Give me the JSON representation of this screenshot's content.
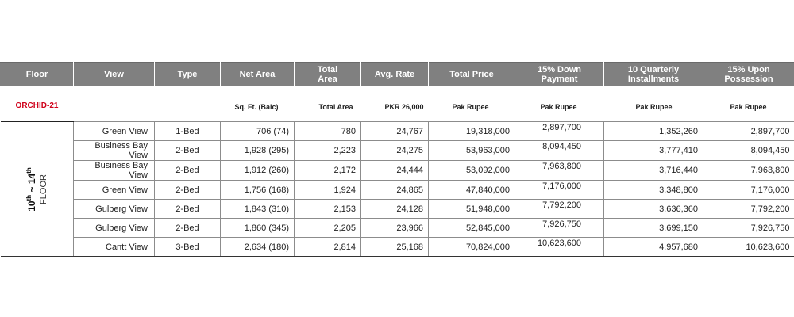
{
  "headers": {
    "floor": "Floor",
    "view": "View",
    "type": "Type",
    "net_area": "Net Area",
    "total_area": "Total Area",
    "avg_rate": "Avg. Rate",
    "total_price": "Total Price",
    "down_payment": "15% Down Payment",
    "quarterly": "10 Quarterly Installments",
    "possession": "15% Upon Possession"
  },
  "subheader": {
    "project": "ORCHID-21",
    "net_area": "Sq. Ft. (Balc)",
    "total_area": "Total Area",
    "avg_rate": "PKR 26,000",
    "total_price": "Pak Rupee",
    "down_payment": "Pak Rupee",
    "quarterly": "Pak Rupee",
    "possession": "Pak Rupee"
  },
  "floor_label": {
    "from": "10",
    "from_suffix": "th",
    "separator": " ~ ",
    "to": "14",
    "to_suffix": "th",
    "word": "FLOOR"
  },
  "rows": [
    {
      "view": "Green View",
      "type": "1-Bed",
      "net_area": "706 (74)",
      "total_area": "780",
      "avg_rate": "24,767",
      "total_price": "19,318,000",
      "down_payment": "2,897,700",
      "quarterly": "1,352,260",
      "possession": "2,897,700"
    },
    {
      "view": "Business Bay View",
      "type": "2-Bed",
      "net_area": "1,928 (295)",
      "total_area": "2,223",
      "avg_rate": "24,275",
      "total_price": "53,963,000",
      "down_payment": "8,094,450",
      "quarterly": "3,777,410",
      "possession": "8,094,450"
    },
    {
      "view": "Business Bay View",
      "type": "2-Bed",
      "net_area": "1,912 (260)",
      "total_area": "2,172",
      "avg_rate": "24,444",
      "total_price": "53,092,000",
      "down_payment": "7,963,800",
      "quarterly": "3,716,440",
      "possession": "7,963,800"
    },
    {
      "view": "Green View",
      "type": "2-Bed",
      "net_area": "1,756 (168)",
      "total_area": "1,924",
      "avg_rate": "24,865",
      "total_price": "47,840,000",
      "down_payment": "7,176,000",
      "quarterly": "3,348,800",
      "possession": "7,176,000"
    },
    {
      "view": "Gulberg View",
      "type": "2-Bed",
      "net_area": "1,843 (310)",
      "total_area": "2,153",
      "avg_rate": "24,128",
      "total_price": "51,948,000",
      "down_payment": "7,792,200",
      "quarterly": "3,636,360",
      "possession": "7,792,200"
    },
    {
      "view": "Gulberg View",
      "type": "2-Bed",
      "net_area": "1,860 (345)",
      "total_area": "2,205",
      "avg_rate": "23,966",
      "total_price": "52,845,000",
      "down_payment": "7,926,750",
      "quarterly": "3,699,150",
      "possession": "7,926,750"
    },
    {
      "view": "Cantt View",
      "type": "3-Bed",
      "net_area": "2,634 (180)",
      "total_area": "2,814",
      "avg_rate": "25,168",
      "total_price": "70,824,000",
      "down_payment": "10,623,600",
      "quarterly": "4,957,680",
      "possession": "10,623,600"
    }
  ]
}
